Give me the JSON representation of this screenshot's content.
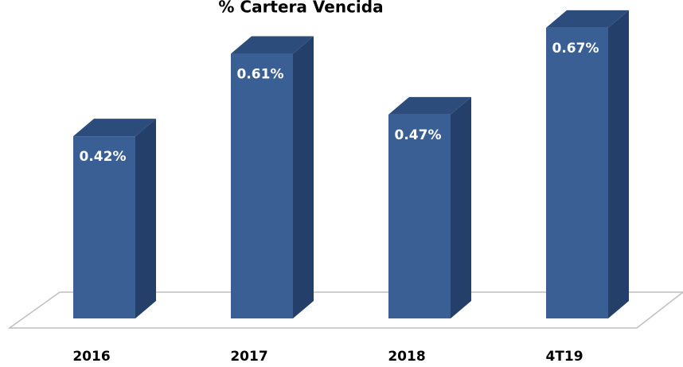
{
  "chart_data": {
    "type": "bar3d",
    "title": "% Cartera Vencida",
    "categories": [
      "2016",
      "2017",
      "2018",
      "4T19"
    ],
    "values": [
      0.42,
      0.61,
      0.47,
      0.67
    ],
    "value_labels": [
      "0.42%",
      "0.61%",
      "0.47%",
      "0.67%"
    ],
    "color": "#3a5f94"
  }
}
